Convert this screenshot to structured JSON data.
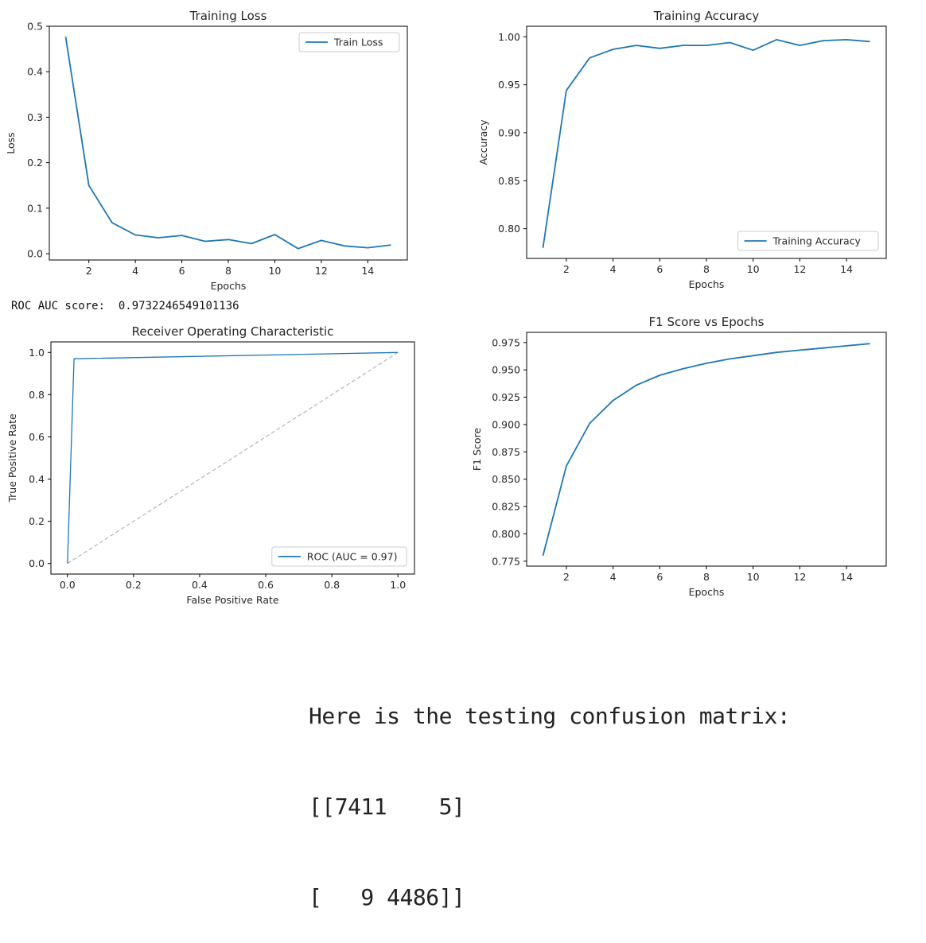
{
  "colors": {
    "series": "#1f77b4",
    "diagonal": "#b5b5b5",
    "axis": "#000000",
    "text": "#262626"
  },
  "roc_score": {
    "label": "ROC AUC score:",
    "value": "0.9732246549101136"
  },
  "confusion": {
    "title": "Here is the testing confusion matrix:",
    "row1": "[[7411    5]",
    "row2": "[   9 4486]]"
  },
  "chart_data": [
    {
      "id": "loss",
      "type": "line",
      "title": "Training Loss",
      "xlabel": "Epochs",
      "ylabel": "Loss",
      "xlim": [
        0.3,
        15.7
      ],
      "ylim": [
        -0.014,
        0.5
      ],
      "xticks": [
        2,
        4,
        6,
        8,
        10,
        12,
        14
      ],
      "yticks": [
        0.0,
        0.1,
        0.2,
        0.3,
        0.4,
        0.5
      ],
      "ytick_labels": [
        "0.0",
        "0.1",
        "0.2",
        "0.3",
        "0.4",
        "0.5"
      ],
      "legend_position": "upper right",
      "series": [
        {
          "name": "Train Loss",
          "x": [
            1,
            2,
            3,
            4,
            5,
            6,
            7,
            8,
            9,
            10,
            11,
            12,
            13,
            14,
            15
          ],
          "y": [
            0.477,
            0.15,
            0.068,
            0.041,
            0.035,
            0.04,
            0.027,
            0.031,
            0.022,
            0.042,
            0.011,
            0.029,
            0.017,
            0.013,
            0.019
          ]
        }
      ]
    },
    {
      "id": "accuracy",
      "type": "line",
      "title": "Training Accuracy",
      "xlabel": "Epochs",
      "ylabel": "Accuracy",
      "xlim": [
        0.3,
        15.7
      ],
      "ylim": [
        0.769,
        1.011
      ],
      "xticks": [
        2,
        4,
        6,
        8,
        10,
        12,
        14
      ],
      "yticks": [
        0.8,
        0.85,
        0.9,
        0.95,
        1.0
      ],
      "ytick_labels": [
        "0.80",
        "0.85",
        "0.90",
        "0.95",
        "1.00"
      ],
      "legend_position": "lower right",
      "series": [
        {
          "name": "Training Accuracy",
          "x": [
            1,
            2,
            3,
            4,
            5,
            6,
            7,
            8,
            9,
            10,
            11,
            12,
            13,
            14,
            15
          ],
          "y": [
            0.78,
            0.944,
            0.978,
            0.987,
            0.991,
            0.988,
            0.991,
            0.991,
            0.994,
            0.986,
            0.997,
            0.991,
            0.996,
            0.997,
            0.995
          ]
        }
      ]
    },
    {
      "id": "roc",
      "type": "line",
      "title": "Receiver Operating Characteristic",
      "xlabel": "False Positive Rate",
      "ylabel": "True Positive Rate",
      "xlim": [
        -0.05,
        1.05
      ],
      "ylim": [
        -0.05,
        1.05
      ],
      "xticks": [
        0.0,
        0.2,
        0.4,
        0.6,
        0.8,
        1.0
      ],
      "xtick_labels": [
        "0.0",
        "0.2",
        "0.4",
        "0.6",
        "0.8",
        "1.0"
      ],
      "yticks": [
        0.0,
        0.2,
        0.4,
        0.6,
        0.8,
        1.0
      ],
      "ytick_labels": [
        "0.0",
        "0.2",
        "0.4",
        "0.6",
        "0.8",
        "1.0"
      ],
      "legend_position": "lower right",
      "series": [
        {
          "name": "ROC (AUC = 0.97)",
          "x": [
            0.0,
            0.02,
            1.0
          ],
          "y": [
            0.0,
            0.97,
            1.0
          ]
        }
      ],
      "reference_line": {
        "x": [
          0.0,
          1.0
        ],
        "y": [
          0.0,
          1.0
        ],
        "style": "dashed"
      }
    },
    {
      "id": "f1",
      "type": "line",
      "title": "F1 Score vs Epochs",
      "xlabel": "Epochs",
      "ylabel": "F1 Score",
      "xlim": [
        0.3,
        15.7
      ],
      "ylim": [
        0.7705,
        0.9843
      ],
      "xticks": [
        2,
        4,
        6,
        8,
        10,
        12,
        14
      ],
      "yticks": [
        0.775,
        0.8,
        0.825,
        0.85,
        0.875,
        0.9,
        0.925,
        0.95,
        0.975
      ],
      "ytick_labels": [
        "0.775",
        "0.800",
        "0.825",
        "0.850",
        "0.875",
        "0.900",
        "0.925",
        "0.950",
        "0.975"
      ],
      "legend_position": "none",
      "series": [
        {
          "name": "F1 Score",
          "x": [
            1,
            2,
            3,
            4,
            5,
            6,
            7,
            8,
            9,
            10,
            11,
            12,
            13,
            14,
            15
          ],
          "y": [
            0.78,
            0.862,
            0.901,
            0.922,
            0.936,
            0.945,
            0.951,
            0.956,
            0.96,
            0.963,
            0.966,
            0.968,
            0.97,
            0.972,
            0.974
          ]
        }
      ]
    }
  ]
}
